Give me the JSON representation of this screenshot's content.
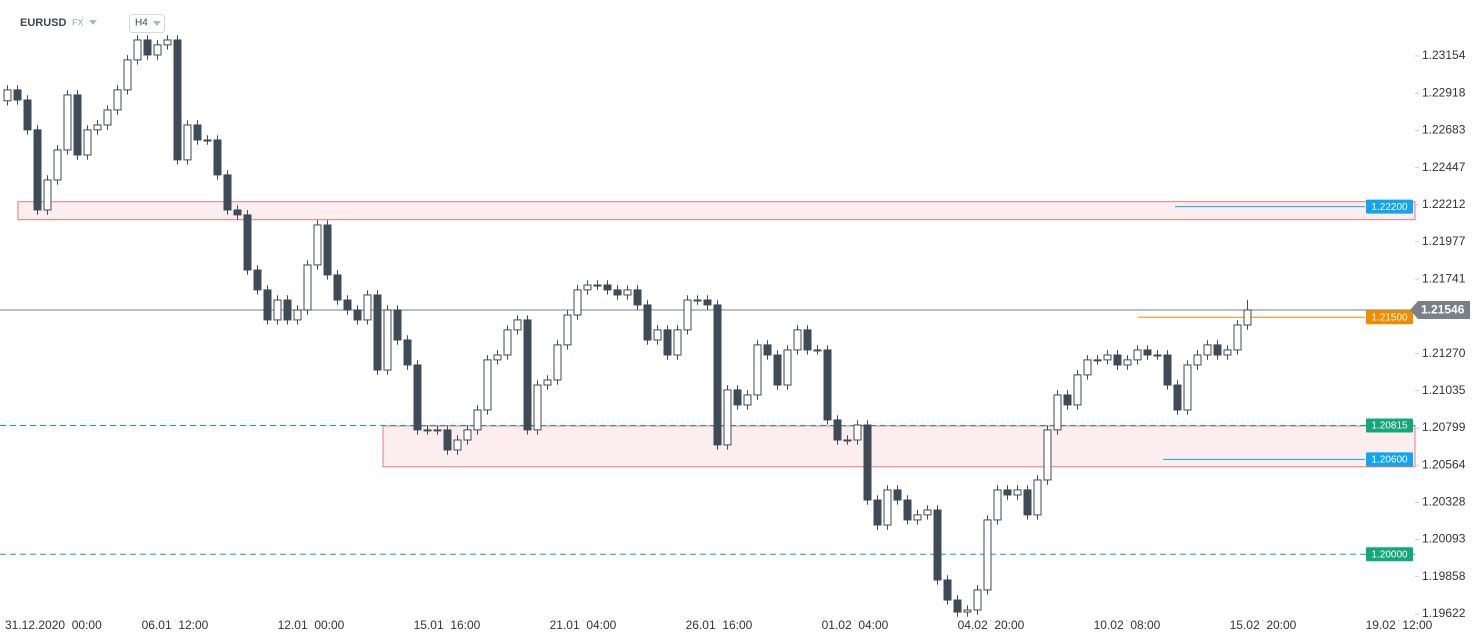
{
  "header": {
    "symbol": "EURUSD",
    "market": "FX",
    "interval": "H4"
  },
  "chart_data": {
    "type": "candlestick",
    "up_color": "#ffffff",
    "down_color": "#3f4b57",
    "line_color": "#3f4b57",
    "xlim": [
      -0.7,
      140.8
    ],
    "xticks": [
      {
        "value": 3.2,
        "label": "31.12.2020  00:00"
      },
      {
        "value": 16.8,
        "label": "06.01  12:00"
      },
      {
        "value": 30.4,
        "label": "12.01  00:00"
      },
      {
        "value": 44,
        "label": "15.01  16:00"
      },
      {
        "value": 57.6,
        "label": "21.01  04:00"
      },
      {
        "value": 71.2,
        "label": "26.01  16:00"
      },
      {
        "value": 84.8,
        "label": "01.02  04:00"
      },
      {
        "value": 98.4,
        "label": "04.02  20:00"
      },
      {
        "value": 112,
        "label": "10.02  08:00"
      },
      {
        "value": 125.6,
        "label": "15.02  20:00"
      },
      {
        "value": 139.2,
        "label": "19.02  12:00"
      }
    ],
    "ylim": [
      1.1959,
      1.23508
    ],
    "yticks": [
      1.23154,
      1.22918,
      1.22683,
      1.22447,
      1.22212,
      1.21977,
      1.21741,
      {
        "value": 1.2127,
        "label": "1.21270"
      },
      1.21035,
      1.20799,
      1.20564,
      1.20328,
      1.20093,
      1.19858,
      1.19622
    ],
    "current_price": {
      "value": 1.21546,
      "color": "#7a8088"
    },
    "zones": [
      {
        "from": 1.22231,
        "to": 1.22117,
        "start": 1.1,
        "color": "#e05a5a"
      },
      {
        "from": 1.20812,
        "to": 1.20553,
        "start": 37.6,
        "color": "#e05a5a"
      }
    ],
    "levels": [
      {
        "value": 1.222,
        "label": "1.22200",
        "color": "#12a4ec",
        "dashed": false,
        "start": 116.8
      },
      {
        "value": 1.215,
        "label": "1.21500",
        "color": "#f08c00",
        "dashed": false,
        "start": 113.1
      },
      {
        "value": 1.20815,
        "label": "1.20815",
        "color": "#13a77a",
        "dashed": true
      },
      {
        "value": 1.206,
        "label": "1.20600",
        "color": "#12a4ec",
        "dashed": false,
        "start": 115.6
      },
      {
        "value": 1.2,
        "label": "1.20000",
        "color": "#13a77a",
        "dashed": true
      }
    ],
    "ohlc": [
      [
        1.2287,
        1.22969,
        1.2284,
        1.22939
      ],
      [
        1.22939,
        1.22969,
        1.22845,
        1.22875
      ],
      [
        1.22875,
        1.22905,
        1.22656,
        1.22686
      ],
      [
        1.22686,
        1.22716,
        1.22149,
        1.22179
      ],
      [
        1.22179,
        1.22399,
        1.22149,
        1.22369
      ],
      [
        1.22369,
        1.22589,
        1.22339,
        1.22559
      ],
      [
        1.22559,
        1.22937,
        1.22529,
        1.22907
      ],
      [
        1.22907,
        1.22937,
        1.22497,
        1.22527
      ],
      [
        1.22527,
        1.22716,
        1.22497,
        1.22686
      ],
      [
        1.22686,
        1.22747,
        1.22656,
        1.22717
      ],
      [
        1.22717,
        1.22842,
        1.22687,
        1.22812
      ],
      [
        1.22812,
        1.22969,
        1.22782,
        1.22939
      ],
      [
        1.22939,
        1.23159,
        1.22909,
        1.23129
      ],
      [
        1.23129,
        1.23285,
        1.23099,
        1.23255
      ],
      [
        1.23255,
        1.23285,
        1.2313,
        1.2316
      ],
      [
        1.2316,
        1.23254,
        1.2313,
        1.23224
      ],
      [
        1.23224,
        1.23285,
        1.23194,
        1.23255
      ],
      [
        1.23255,
        1.23285,
        1.22466,
        1.22496
      ],
      [
        1.22496,
        1.22747,
        1.22466,
        1.22717
      ],
      [
        1.22717,
        1.22747,
        1.22592,
        1.22622
      ],
      [
        1.22622,
        1.22652,
        1.22592,
        1.22622
      ],
      [
        1.22622,
        1.22652,
        1.22371,
        1.22401
      ],
      [
        1.22401,
        1.22431,
        1.22149,
        1.22179
      ],
      [
        1.22179,
        1.22209,
        1.22118,
        1.22148
      ],
      [
        1.22148,
        1.22178,
        1.21769,
        1.21799
      ],
      [
        1.21799,
        1.21829,
        1.21643,
        1.21673
      ],
      [
        1.21673,
        1.21703,
        1.21453,
        1.21483
      ],
      [
        1.21483,
        1.21639,
        1.21453,
        1.21609
      ],
      [
        1.21609,
        1.21639,
        1.21453,
        1.21483
      ],
      [
        1.21483,
        1.21576,
        1.21453,
        1.21546
      ],
      [
        1.21546,
        1.21861,
        1.21516,
        1.21831
      ],
      [
        1.21831,
        1.22114,
        1.21801,
        1.22084
      ],
      [
        1.22084,
        1.22114,
        1.21738,
        1.21768
      ],
      [
        1.21768,
        1.21798,
        1.21579,
        1.21609
      ],
      [
        1.21609,
        1.21639,
        1.21516,
        1.21546
      ],
      [
        1.21546,
        1.21576,
        1.21453,
        1.21483
      ],
      [
        1.21483,
        1.21671,
        1.21453,
        1.21641
      ],
      [
        1.21641,
        1.21671,
        1.21136,
        1.21166
      ],
      [
        1.21166,
        1.21576,
        1.21136,
        1.21546
      ],
      [
        1.21546,
        1.21576,
        1.21326,
        1.21356
      ],
      [
        1.21356,
        1.21386,
        1.21168,
        1.21198
      ],
      [
        1.21198,
        1.21228,
        1.20757,
        1.20787
      ],
      [
        1.20787,
        1.20817,
        1.20757,
        1.20787
      ],
      [
        1.20787,
        1.20817,
        1.20757,
        1.20787
      ],
      [
        1.20787,
        1.20817,
        1.2063,
        1.2066
      ],
      [
        1.2066,
        1.20753,
        1.2063,
        1.20723
      ],
      [
        1.20723,
        1.20817,
        1.20693,
        1.20787
      ],
      [
        1.20787,
        1.20943,
        1.20757,
        1.20913
      ],
      [
        1.20913,
        1.2126,
        1.20883,
        1.2123
      ],
      [
        1.2123,
        1.21291,
        1.212,
        1.21261
      ],
      [
        1.21261,
        1.2145,
        1.21231,
        1.2142
      ],
      [
        1.2142,
        1.21513,
        1.2139,
        1.21483
      ],
      [
        1.21483,
        1.21513,
        1.20757,
        1.20787
      ],
      [
        1.20787,
        1.21101,
        1.20757,
        1.21071
      ],
      [
        1.21071,
        1.21133,
        1.21041,
        1.21103
      ],
      [
        1.21103,
        1.21355,
        1.21073,
        1.21325
      ],
      [
        1.21325,
        1.21544,
        1.21295,
        1.21514
      ],
      [
        1.21514,
        1.21703,
        1.21484,
        1.21673
      ],
      [
        1.21673,
        1.21734,
        1.21643,
        1.21704
      ],
      [
        1.21704,
        1.21734,
        1.21674,
        1.21704
      ],
      [
        1.21704,
        1.21734,
        1.21643,
        1.21673
      ],
      [
        1.21673,
        1.21703,
        1.21611,
        1.21641
      ],
      [
        1.21641,
        1.21703,
        1.21611,
        1.21673
      ],
      [
        1.21673,
        1.21703,
        1.21548,
        1.21578
      ],
      [
        1.21578,
        1.21608,
        1.21326,
        1.21356
      ],
      [
        1.21356,
        1.2145,
        1.21326,
        1.2142
      ],
      [
        1.2142,
        1.2145,
        1.21231,
        1.21261
      ],
      [
        1.21261,
        1.2145,
        1.21231,
        1.2142
      ],
      [
        1.2142,
        1.21639,
        1.2139,
        1.21609
      ],
      [
        1.21609,
        1.21639,
        1.21579,
        1.21609
      ],
      [
        1.21609,
        1.21639,
        1.21548,
        1.21578
      ],
      [
        1.21578,
        1.21608,
        1.20662,
        1.20692
      ],
      [
        1.20692,
        1.2107,
        1.20662,
        1.2104
      ],
      [
        1.2104,
        1.2107,
        1.20915,
        1.20945
      ],
      [
        1.20945,
        1.21038,
        1.20915,
        1.21008
      ],
      [
        1.21008,
        1.21355,
        1.20978,
        1.21325
      ],
      [
        1.21325,
        1.21355,
        1.21231,
        1.21261
      ],
      [
        1.21261,
        1.21291,
        1.21041,
        1.21071
      ],
      [
        1.21071,
        1.21323,
        1.21041,
        1.21293
      ],
      [
        1.21293,
        1.2145,
        1.21263,
        1.2142
      ],
      [
        1.2142,
        1.2145,
        1.21263,
        1.21293
      ],
      [
        1.21293,
        1.21323,
        1.21263,
        1.21293
      ],
      [
        1.21293,
        1.21323,
        1.2082,
        1.2085
      ],
      [
        1.2085,
        1.2088,
        1.20693,
        1.20723
      ],
      [
        1.20723,
        1.20753,
        1.20693,
        1.20723
      ],
      [
        1.20723,
        1.20848,
        1.20693,
        1.20818
      ],
      [
        1.20818,
        1.20848,
        1.20313,
        1.20343
      ],
      [
        1.20343,
        1.20373,
        1.20155,
        1.20185
      ],
      [
        1.20185,
        1.20437,
        1.20155,
        1.20407
      ],
      [
        1.20407,
        1.20437,
        1.20313,
        1.20343
      ],
      [
        1.20343,
        1.20373,
        1.20187,
        1.20217
      ],
      [
        1.20217,
        1.20279,
        1.20187,
        1.20249
      ],
      [
        1.20249,
        1.2031,
        1.20219,
        1.2028
      ],
      [
        1.2028,
        1.2031,
        1.19807,
        1.19837
      ],
      [
        1.19837,
        1.19867,
        1.1968,
        1.1971
      ],
      [
        1.1971,
        1.1974,
        1.19604,
        1.19634
      ],
      [
        1.19634,
        1.19677,
        1.19604,
        1.19647
      ],
      [
        1.19647,
        1.19804,
        1.19617,
        1.19774
      ],
      [
        1.19774,
        1.20247,
        1.19744,
        1.20217
      ],
      [
        1.20217,
        1.20437,
        1.20187,
        1.20407
      ],
      [
        1.20407,
        1.20437,
        1.20345,
        1.20375
      ],
      [
        1.20375,
        1.20437,
        1.20345,
        1.20407
      ],
      [
        1.20407,
        1.20437,
        1.20219,
        1.20249
      ],
      [
        1.20249,
        1.205,
        1.20219,
        1.2047
      ],
      [
        1.2047,
        1.20817,
        1.2044,
        1.20787
      ],
      [
        1.20787,
        1.21038,
        1.20757,
        1.21008
      ],
      [
        1.21008,
        1.21038,
        1.20915,
        1.20945
      ],
      [
        1.20945,
        1.21165,
        1.20915,
        1.21135
      ],
      [
        1.21135,
        1.2126,
        1.21105,
        1.2123
      ],
      [
        1.2123,
        1.2126,
        1.212,
        1.2123
      ],
      [
        1.2123,
        1.21291,
        1.212,
        1.21261
      ],
      [
        1.21261,
        1.21291,
        1.21168,
        1.21198
      ],
      [
        1.21198,
        1.2126,
        1.21168,
        1.2123
      ],
      [
        1.2123,
        1.21323,
        1.212,
        1.21293
      ],
      [
        1.21293,
        1.21323,
        1.21231,
        1.21261
      ],
      [
        1.21261,
        1.21291,
        1.21231,
        1.21261
      ],
      [
        1.21261,
        1.21291,
        1.21041,
        1.21071
      ],
      [
        1.21071,
        1.21101,
        1.20883,
        1.20913
      ],
      [
        1.20913,
        1.21228,
        1.20883,
        1.21198
      ],
      [
        1.21198,
        1.21291,
        1.21168,
        1.21261
      ],
      [
        1.21261,
        1.21355,
        1.21231,
        1.21325
      ],
      [
        1.21325,
        1.21355,
        1.21231,
        1.21261
      ],
      [
        1.21261,
        1.21323,
        1.21231,
        1.21293
      ],
      [
        1.21293,
        1.21481,
        1.21263,
        1.21451
      ],
      [
        1.21451,
        1.2161,
        1.21421,
        1.21546
      ]
    ]
  }
}
